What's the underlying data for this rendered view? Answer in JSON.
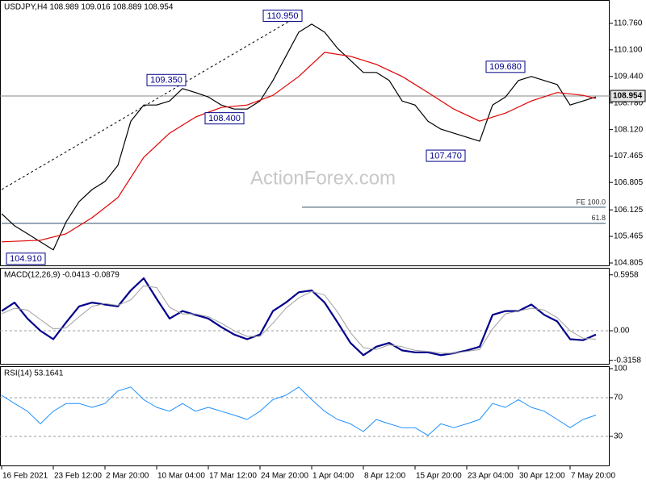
{
  "chart_data": [
    {
      "type": "line",
      "title": "USDJPY,H4  108.989 109.016 108.889 108.954",
      "watermark": "ActionForex.com",
      "xlim": [
        -1,
        376.5
      ],
      "ylim": [
        104.725,
        111.34
      ],
      "yticks": [
        {
          "value": 110.76,
          "label": "110.760"
        },
        {
          "value": 110.1,
          "label": "110.100"
        },
        {
          "value": 109.44,
          "label": "109.440"
        },
        {
          "value": 108.78,
          "label": "108.780"
        },
        {
          "value": 108.12,
          "label": "108.120"
        },
        107.465,
        106.805,
        106.125,
        105.465,
        104.805
      ],
      "series": [
        {
          "color": "#000000",
          "x": [
            0,
            8,
            16,
            24,
            32,
            40,
            48,
            56,
            64,
            72,
            80,
            88,
            96,
            104,
            112,
            120,
            128,
            136,
            144,
            152,
            160,
            168,
            176,
            184,
            192,
            200,
            208,
            216,
            224,
            232,
            240,
            248,
            256,
            264,
            272,
            280,
            288,
            296,
            304,
            312,
            320,
            328,
            336,
            344,
            352,
            360,
            368
          ],
          "values": [
            106.03,
            105.73,
            105.53,
            105.33,
            105.13,
            105.83,
            106.33,
            106.63,
            106.83,
            107.23,
            108.33,
            108.73,
            108.73,
            108.83,
            109.14,
            109.04,
            108.93,
            108.73,
            108.63,
            108.63,
            108.83,
            109.34,
            109.94,
            110.54,
            110.74,
            110.54,
            110.14,
            109.84,
            109.54,
            109.54,
            109.34,
            108.83,
            108.73,
            108.33,
            108.13,
            108.03,
            107.93,
            107.83,
            108.73,
            108.93,
            109.34,
            109.44,
            109.34,
            109.24,
            108.73,
            108.83,
            108.93
          ]
        },
        {
          "color": "#e00000",
          "x": [
            0,
            24,
            40,
            56,
            72,
            88,
            104,
            120,
            136,
            152,
            168,
            184,
            200,
            216,
            232,
            248,
            264,
            280,
            296,
            312,
            328,
            344,
            360,
            368
          ],
          "values": [
            105.33,
            105.37,
            105.53,
            105.93,
            106.43,
            107.43,
            108.03,
            108.43,
            108.67,
            108.73,
            108.97,
            109.44,
            110.04,
            109.94,
            109.74,
            109.44,
            109.04,
            108.63,
            108.33,
            108.53,
            108.83,
            109.04,
            108.97,
            108.89
          ]
        }
      ],
      "current": 108.954,
      "annotations": [
        {
          "x": 174,
          "value": 110.95,
          "label": "110.950"
        },
        {
          "x": 102,
          "value": 109.35,
          "label": "109.350"
        },
        {
          "x": 138,
          "value": 108.4,
          "label": "108.400"
        },
        {
          "x": 312,
          "value": 109.68,
          "label": "109.680"
        },
        {
          "x": 275,
          "value": 107.47,
          "label": "107.470"
        },
        {
          "x": 15,
          "value": 104.91,
          "label": "104.910"
        }
      ],
      "levels": [
        {
          "label": "FE 100.0",
          "value": 106.19,
          "x": [
            186,
            374
          ]
        },
        {
          "label": "61.8",
          "value": 105.79,
          "x": [
            0,
            374
          ]
        }
      ],
      "trendline": {
        "x": [
          0,
          184
        ],
        "values": [
          106.63,
          110.95
        ]
      }
    },
    {
      "type": "line",
      "title": "MACD(12,26,9) -0.0413 -0.0879",
      "xlim": [
        -1,
        376.5
      ],
      "ylim": [
        -0.361,
        0.671
      ],
      "yticks": [
        0.5958,
        {
          "value": 0,
          "label": "0.00"
        },
        -0.3158
      ],
      "levels": [
        0
      ],
      "series": [
        {
          "color": "#00008b",
          "width": 2.2,
          "x": [
            0,
            8,
            16,
            24,
            32,
            40,
            48,
            56,
            64,
            72,
            80,
            88,
            96,
            104,
            112,
            120,
            128,
            136,
            144,
            152,
            160,
            168,
            176,
            184,
            192,
            200,
            208,
            216,
            224,
            232,
            240,
            248,
            256,
            264,
            272,
            280,
            288,
            296,
            304,
            312,
            320,
            328,
            336,
            344,
            352,
            360,
            368
          ],
          "values": [
            0.21,
            0.3,
            0.13,
            0,
            -0.09,
            0.09,
            0.26,
            0.3,
            0.28,
            0.26,
            0.43,
            0.56,
            0.34,
            0.13,
            0.21,
            0.17,
            0.13,
            0.04,
            -0.04,
            -0.09,
            -0.04,
            0.21,
            0.3,
            0.41,
            0.43,
            0.3,
            0.09,
            -0.13,
            -0.26,
            -0.17,
            -0.13,
            -0.21,
            -0.23,
            -0.23,
            -0.26,
            -0.24,
            -0.21,
            -0.17,
            0.17,
            0.21,
            0.21,
            0.28,
            0.17,
            0.1,
            -0.09,
            -0.1,
            -0.04
          ]
        },
        {
          "color": "#a0a0a0",
          "width": 1,
          "x": [
            0,
            8,
            16,
            24,
            32,
            40,
            48,
            56,
            64,
            72,
            80,
            88,
            96,
            104,
            112,
            120,
            128,
            136,
            144,
            152,
            160,
            168,
            176,
            184,
            192,
            200,
            208,
            216,
            224,
            232,
            240,
            248,
            256,
            264,
            272,
            280,
            288,
            296,
            304,
            312,
            320,
            328,
            336,
            344,
            352,
            360,
            368
          ],
          "values": [
            0.18,
            0.24,
            0.22,
            0.12,
            0.02,
            0.03,
            0.15,
            0.26,
            0.29,
            0.27,
            0.33,
            0.48,
            0.46,
            0.25,
            0.18,
            0.18,
            0.15,
            0.08,
            0.0,
            -0.06,
            -0.06,
            0.08,
            0.24,
            0.35,
            0.42,
            0.38,
            0.2,
            -0.02,
            -0.18,
            -0.2,
            -0.15,
            -0.17,
            -0.21,
            -0.22,
            -0.24,
            -0.24,
            -0.22,
            -0.2,
            0.02,
            0.18,
            0.21,
            0.24,
            0.22,
            0.14,
            0.0,
            -0.08,
            -0.09
          ]
        }
      ]
    },
    {
      "type": "line",
      "title": "RSI(14) 53.1641",
      "xlim": [
        -1,
        376.5
      ],
      "ylim": [
        -0.8,
        102.5
      ],
      "yticks": [
        100,
        70,
        30
      ],
      "levels": [
        70,
        30
      ],
      "xticks": [
        {
          "value": 0,
          "label": "16 Feb 2021"
        },
        {
          "value": 32,
          "label": "23 Feb 12:00"
        },
        {
          "value": 64,
          "label": "2 Mar 20:00"
        },
        {
          "value": 96,
          "label": "10 Mar 04:00"
        },
        {
          "value": 128,
          "label": "17 Mar 12:00"
        },
        {
          "value": 160,
          "label": "24 Mar 20:00"
        },
        {
          "value": 192,
          "label": "1 Apr 04:00"
        },
        {
          "value": 224,
          "label": "8 Apr 12:00"
        },
        {
          "value": 256,
          "label": "15 Apr 20:00"
        },
        {
          "value": 288,
          "label": "23 Apr 04:00"
        },
        {
          "value": 320,
          "label": "30 Apr 12:00"
        },
        {
          "value": 352,
          "label": "7 May 20:00"
        }
      ],
      "series": [
        {
          "color": "#1e90ff",
          "width": 1,
          "x": [
            0,
            8,
            16,
            24,
            32,
            40,
            48,
            56,
            64,
            72,
            80,
            88,
            96,
            104,
            112,
            120,
            128,
            136,
            144,
            152,
            160,
            168,
            176,
            184,
            192,
            200,
            208,
            216,
            224,
            232,
            240,
            248,
            256,
            264,
            272,
            280,
            288,
            296,
            304,
            312,
            320,
            328,
            336,
            344,
            352,
            360,
            368
          ],
          "values": [
            72.5,
            64,
            56,
            43,
            56,
            64,
            64,
            60,
            64,
            77,
            81,
            68,
            60,
            56,
            64,
            56,
            60,
            56,
            52,
            47.5,
            56,
            68,
            72.5,
            81,
            68,
            56,
            47.5,
            43,
            35,
            47.5,
            43,
            39,
            39,
            31,
            43,
            39,
            43,
            47.5,
            64,
            60,
            68,
            60,
            56,
            47.5,
            39,
            47.5,
            52
          ]
        }
      ]
    }
  ]
}
